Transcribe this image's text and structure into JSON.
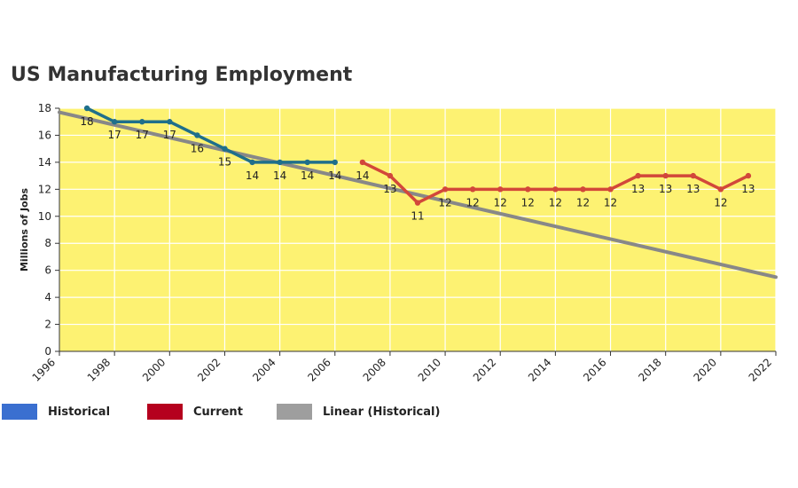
{
  "chart_data": {
    "type": "line",
    "title": "US Manufacturing Employment",
    "xlabel": "",
    "ylabel": "Millions of Jobs",
    "xlim": [
      1996,
      2022
    ],
    "ylim": [
      0,
      18
    ],
    "x_ticks": [
      1996,
      1998,
      2000,
      2002,
      2004,
      2006,
      2008,
      2010,
      2012,
      2014,
      2016,
      2018,
      2020,
      2022
    ],
    "y_ticks": [
      0,
      2,
      4,
      6,
      8,
      10,
      12,
      14,
      16,
      18
    ],
    "grid": true,
    "plot_background": "#fdf272",
    "legend_position": "bottom-left",
    "series": [
      {
        "name": "Historical",
        "color": "#1f6f8b",
        "legend_color": "#3a6fd0",
        "x": [
          1997,
          1998,
          1999,
          2000,
          2001,
          2002,
          2003,
          2004,
          2005,
          2006
        ],
        "values": [
          18,
          17,
          17,
          17,
          16,
          15,
          14,
          14,
          14,
          14
        ],
        "data_labels": [
          "18",
          "17",
          "17",
          "17",
          "16",
          "15",
          "14",
          "14",
          "14",
          "14"
        ]
      },
      {
        "name": "Current",
        "color": "#d2473a",
        "legend_color": "#b5001e",
        "x": [
          2007,
          2008,
          2009,
          2010,
          2011,
          2012,
          2013,
          2014,
          2015,
          2016,
          2017,
          2018,
          2019,
          2020,
          2021
        ],
        "values": [
          14,
          13,
          11,
          12,
          12,
          12,
          12,
          12,
          12,
          12,
          13,
          13,
          13,
          12,
          13
        ],
        "data_labels": [
          "14",
          "13",
          "11",
          "12",
          "12",
          "12",
          "12",
          "12",
          "12",
          "12",
          "13",
          "13",
          "13",
          "12",
          "13"
        ]
      },
      {
        "name": "Linear (Historical)",
        "color": "#888888",
        "legend_color": "#9e9e9e",
        "x": [
          1996,
          2022
        ],
        "values": [
          17.7,
          5.5
        ]
      }
    ]
  }
}
